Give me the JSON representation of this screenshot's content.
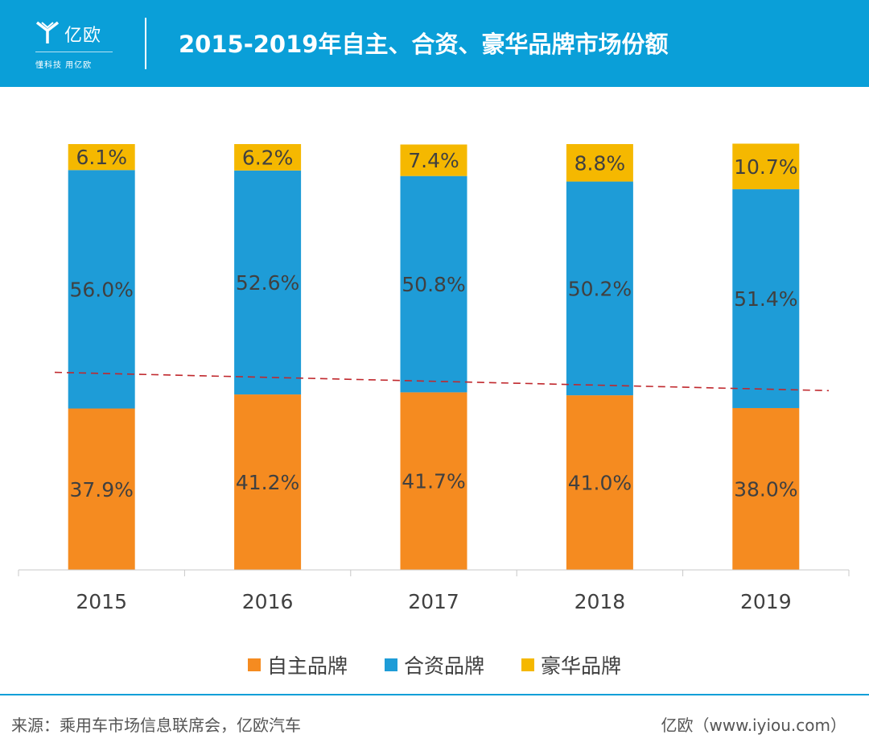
{
  "header": {
    "logo_name": "亿欧",
    "logo_slogan": "懂科技 用亿欧",
    "title": "2015-2019年自主、合资、豪华品牌市场份额"
  },
  "colors": {
    "header_bg": "#0a9fd8",
    "domestic": "#f58b20",
    "joint_venture": "#1e9cd7",
    "luxury": "#f5b800",
    "trend_line": "#c0282d"
  },
  "chart_data": {
    "type": "bar",
    "stacked": true,
    "title": "2015-2019年自主、合资、豪华品牌市场份额",
    "categories": [
      "2015",
      "2016",
      "2017",
      "2018",
      "2019"
    ],
    "series": [
      {
        "name": "自主品牌",
        "color": "#f58b20",
        "values": [
          37.9,
          41.2,
          41.7,
          41.0,
          38.0
        ],
        "labels": [
          "37.9%",
          "41.2%",
          "41.7%",
          "41.0%",
          "38.0%"
        ]
      },
      {
        "name": "合资品牌",
        "color": "#1e9cd7",
        "values": [
          56.0,
          52.6,
          50.8,
          50.2,
          51.4
        ],
        "labels": [
          "56.0%",
          "52.6%",
          "50.8%",
          "50.2%",
          "51.4%"
        ]
      },
      {
        "name": "豪华品牌",
        "color": "#f5b800",
        "values": [
          6.1,
          6.2,
          7.4,
          8.8,
          10.7
        ],
        "labels": [
          "6.1%",
          "6.2%",
          "7.4%",
          "8.8%",
          "10.7%"
        ]
      }
    ],
    "ylim": [
      0,
      100
    ],
    "trend_line": {
      "style": "dashed",
      "color": "#c0282d",
      "start_value": 46.4,
      "end_value": 42.1
    },
    "legend_position": "bottom",
    "grid": false
  },
  "footer": {
    "source": "来源：乘用车市场信息联席会，亿欧汽车",
    "credit": "亿欧（www.iyiou.com）"
  }
}
